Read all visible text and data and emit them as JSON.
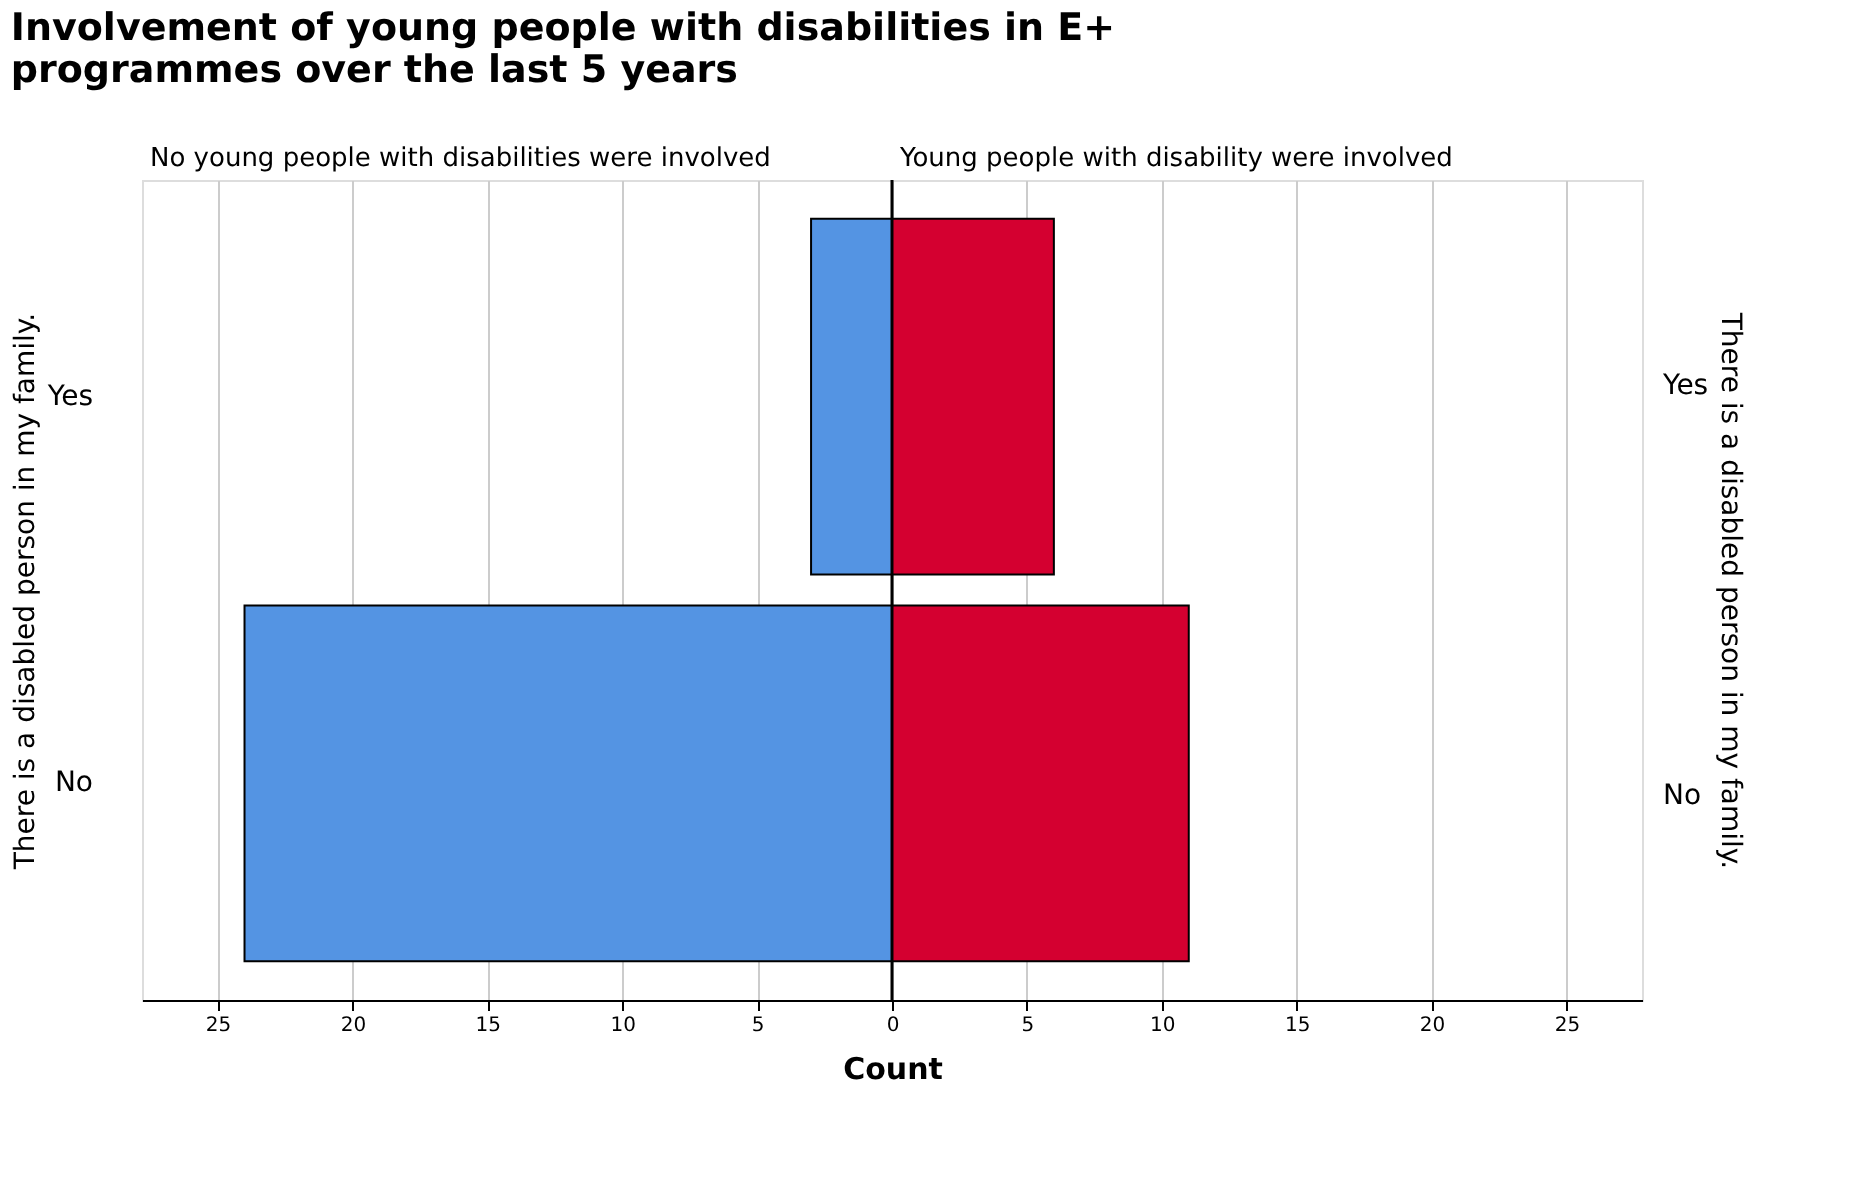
{
  "chart_data": {
    "type": "bar",
    "orientation": "horizontal",
    "title": "Involvement of young people with disabilities in E+ programmes over the last 5 years",
    "categories": [
      "Yes",
      "No"
    ],
    "y2_categories": [
      "Yes",
      "No"
    ],
    "series": [
      {
        "name": "No young people with disabilities were involved",
        "color": "#5494e3",
        "values": [
          -3,
          -24
        ]
      },
      {
        "name": "Young people with disability were involved",
        "color": "#d40030",
        "values": [
          6,
          11
        ]
      }
    ],
    "xlabel": "Count",
    "ylabel": "There is a disabled person in my family.",
    "y2label": "There is a disabled person in my family.",
    "xlim": [
      -27.8,
      27.8
    ],
    "xticks": [
      {
        "value": -25,
        "label": "25"
      },
      {
        "value": -20,
        "label": "20"
      },
      {
        "value": -15,
        "label": "15"
      },
      {
        "value": -10,
        "label": "10"
      },
      {
        "value": -5,
        "label": "5"
      },
      0,
      5,
      10,
      15,
      20,
      25
    ],
    "grid": "x",
    "legend": false,
    "stacked": true
  }
}
